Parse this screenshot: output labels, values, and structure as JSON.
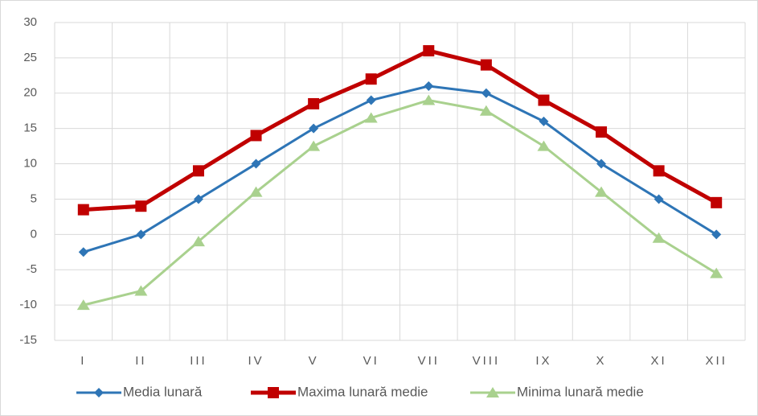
{
  "chart_data": {
    "type": "line",
    "categories": [
      "I",
      "II",
      "III",
      "IV",
      "V",
      "VI",
      "VII",
      "VIII",
      "IX",
      "X",
      "XI",
      "XII"
    ],
    "series": [
      {
        "name": "Media lunară",
        "color": "#2e75b6",
        "marker": "diamond",
        "values": [
          -2.5,
          0,
          5,
          10,
          15,
          19,
          21,
          20,
          16,
          10,
          5,
          0
        ]
      },
      {
        "name": "Maxima lunară medie",
        "color": "#c00000",
        "marker": "square",
        "values": [
          3.5,
          4,
          9,
          14,
          18.5,
          22,
          26,
          24,
          19,
          14.5,
          9,
          4.5
        ]
      },
      {
        "name": "Minima lunară medie",
        "color": "#a9d18e",
        "marker": "triangle",
        "values": [
          -10,
          -8,
          -1,
          6,
          12.5,
          16.5,
          19,
          17.5,
          12.5,
          6,
          -0.5,
          -5.5
        ]
      }
    ],
    "ylim": [
      -15,
      30
    ],
    "yticks": [
      -15,
      -10,
      -5,
      0,
      5,
      10,
      15,
      20,
      25,
      30
    ],
    "grid": true,
    "legend": "bottom"
  }
}
